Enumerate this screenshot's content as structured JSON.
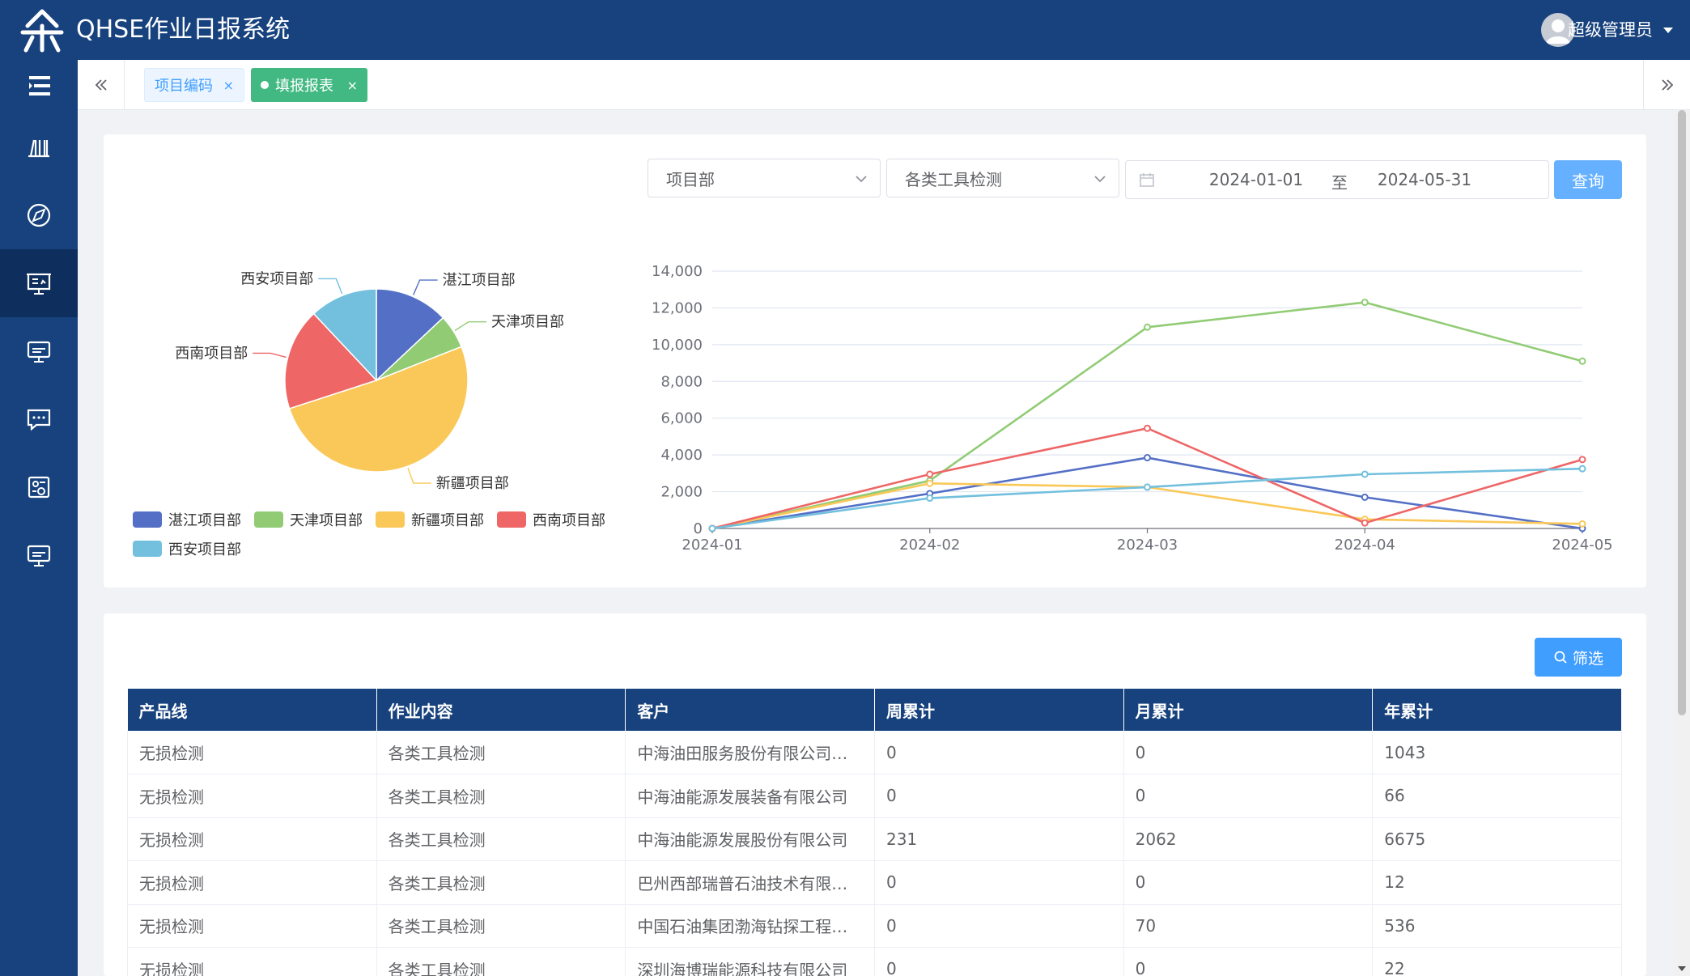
{
  "app": {
    "title": "QHSE作业日报系统",
    "user_name": "超级管理员"
  },
  "colors": {
    "header": "#17427d",
    "accent": "#409eff",
    "active_tab": "#42b983"
  },
  "sidebar": {
    "toggle_icon": "menu-fold-icon",
    "items": [
      {
        "icon": "books-icon",
        "active": false
      },
      {
        "icon": "compass-icon",
        "active": false
      },
      {
        "icon": "presentation-icon",
        "active": true
      },
      {
        "icon": "monitor-icon",
        "active": false
      },
      {
        "icon": "message-icon",
        "active": false
      },
      {
        "icon": "id-card-icon",
        "active": false
      },
      {
        "icon": "monitor-icon",
        "active": false
      }
    ]
  },
  "tabs": [
    {
      "label": "项目编码",
      "close": "×",
      "active": false
    },
    {
      "label": "填报报表",
      "close": "×",
      "active": true
    }
  ],
  "filters": {
    "department": "项目部",
    "category": "各类工具检测",
    "date_start": "2024-01-01",
    "date_separator": "至",
    "date_end": "2024-05-31",
    "query_button": "查询"
  },
  "chart_data": [
    {
      "type": "pie",
      "categories": [
        "湛江项目部",
        "天津项目部",
        "新疆项目部",
        "西南项目部",
        "西安项目部"
      ],
      "values": [
        13,
        6,
        51,
        18,
        12
      ],
      "colors": [
        "#5470c6",
        "#91cc75",
        "#fac858",
        "#ee6666",
        "#73c0de"
      ],
      "legend_position": "bottom-left"
    },
    {
      "type": "line",
      "x": [
        "2024-01",
        "2024-02",
        "2024-03",
        "2024-04",
        "2024-05"
      ],
      "ylim": [
        0,
        14000
      ],
      "yticks": [
        "0",
        "2,000",
        "4,000",
        "6,000",
        "8,000",
        "10,000",
        "12,000",
        "14,000"
      ],
      "grid": true,
      "series": [
        {
          "name": "湛江项目部",
          "color": "#5470c6",
          "values": [
            0,
            1900,
            3850,
            1700,
            0
          ]
        },
        {
          "name": "天津项目部",
          "color": "#91cc75",
          "values": [
            0,
            2600,
            10950,
            12300,
            9100
          ]
        },
        {
          "name": "新疆项目部",
          "color": "#fac858",
          "values": [
            0,
            2450,
            2250,
            500,
            250
          ]
        },
        {
          "name": "西南项目部",
          "color": "#ee6666",
          "values": [
            0,
            2950,
            5450,
            300,
            3750
          ]
        },
        {
          "name": "西安项目部",
          "color": "#73c0de",
          "values": [
            0,
            1650,
            2250,
            2950,
            3250
          ]
        }
      ]
    }
  ],
  "table": {
    "filter_button": "筛选",
    "columns": [
      "产品线",
      "作业内容",
      "客户",
      "周累计",
      "月累计",
      "年累计"
    ],
    "rows": [
      [
        "无损检测",
        "各类工具检测",
        "中海油田服务股份有限公司…",
        "0",
        "0",
        "1043"
      ],
      [
        "无损检测",
        "各类工具检测",
        "中海油能源发展装备有限公司",
        "0",
        "0",
        "66"
      ],
      [
        "无损检测",
        "各类工具检测",
        "中海油能源发展股份有限公司",
        "231",
        "2062",
        "6675"
      ],
      [
        "无损检测",
        "各类工具检测",
        "巴州西部瑞普石油技术有限…",
        "0",
        "0",
        "12"
      ],
      [
        "无损检测",
        "各类工具检测",
        "中国石油集团渤海钻探工程…",
        "0",
        "70",
        "536"
      ],
      [
        "无损检测",
        "各类工具检测",
        "深圳海博瑞能源科技有限公司",
        "0",
        "0",
        "22"
      ]
    ]
  }
}
